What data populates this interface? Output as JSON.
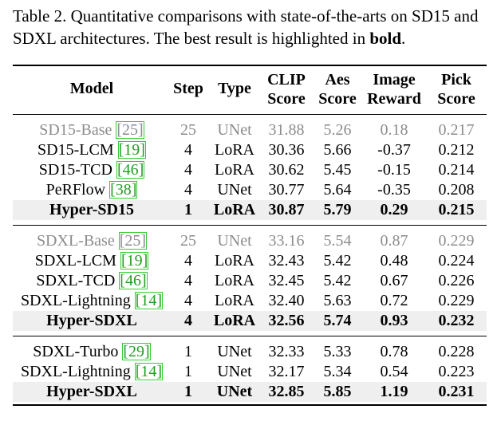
{
  "caption": {
    "prefix": "Table 2. Quantitative comparisons with state-of-the-arts on SD15 and SDXL architectures. The best result is highlighted in ",
    "bold_word": "bold",
    "suffix": "."
  },
  "headers": {
    "model": "Model",
    "step": "Step",
    "type": "Type",
    "clip_1": "CLIP",
    "clip_2": "Score",
    "aes_1": "Aes",
    "aes_2": "Score",
    "ir_1": "Image",
    "ir_2": "Reward",
    "pick_1": "Pick",
    "pick_2": "Score"
  },
  "rows": [
    {
      "model": "SD15-Base",
      "ref": "25",
      "step": "25",
      "type": "UNet",
      "clip": "31.88",
      "aes": "5.26",
      "ir": "0.18",
      "pick": "0.217"
    },
    {
      "model": "SD15-LCM",
      "ref": "19",
      "step": "4",
      "type": "LoRA",
      "clip": "30.36",
      "aes": "5.66",
      "ir": "-0.37",
      "pick": "0.212"
    },
    {
      "model": "SD15-TCD",
      "ref": "46",
      "step": "4",
      "type": "LoRA",
      "clip": "30.62",
      "aes": "5.45",
      "ir": "-0.15",
      "pick": "0.214"
    },
    {
      "model": "PeRFlow",
      "ref": "38",
      "step": "4",
      "type": "UNet",
      "clip": "30.77",
      "aes": "5.64",
      "ir": "-0.35",
      "pick": "0.208"
    },
    {
      "model": "Hyper-SD15",
      "ref": "",
      "step": "1",
      "type": "LoRA",
      "clip": "30.87",
      "aes": "5.79",
      "ir": "0.29",
      "pick": "0.215"
    },
    {
      "model": "SDXL-Base",
      "ref": "25",
      "step": "25",
      "type": "UNet",
      "clip": "33.16",
      "aes": "5.54",
      "ir": "0.87",
      "pick": "0.229"
    },
    {
      "model": "SDXL-LCM",
      "ref": "19",
      "step": "4",
      "type": "LoRA",
      "clip": "32.43",
      "aes": "5.42",
      "ir": "0.48",
      "pick": "0.224"
    },
    {
      "model": "SDXL-TCD",
      "ref": "46",
      "step": "4",
      "type": "LoRA",
      "clip": "32.45",
      "aes": "5.42",
      "ir": "0.67",
      "pick": "0.226"
    },
    {
      "model": "SDXL-Lightning",
      "ref": "14",
      "step": "4",
      "type": "LoRA",
      "clip": "32.40",
      "aes": "5.63",
      "ir": "0.72",
      "pick": "0.229"
    },
    {
      "model": "Hyper-SDXL",
      "ref": "",
      "step": "4",
      "type": "LoRA",
      "clip": "32.56",
      "aes": "5.74",
      "ir": "0.93",
      "pick": "0.232"
    },
    {
      "model": "SDXL-Turbo",
      "ref": "29",
      "step": "1",
      "type": "UNet",
      "clip": "32.33",
      "aes": "5.33",
      "ir": "0.78",
      "pick": "0.228"
    },
    {
      "model": "SDXL-Lightning",
      "ref": "14",
      "step": "1",
      "type": "UNet",
      "clip": "32.17",
      "aes": "5.34",
      "ir": "0.54",
      "pick": "0.223"
    },
    {
      "model": "Hyper-SDXL",
      "ref": "",
      "step": "1",
      "type": "UNet",
      "clip": "32.85",
      "aes": "5.85",
      "ir": "1.19",
      "pick": "0.231"
    }
  ]
}
